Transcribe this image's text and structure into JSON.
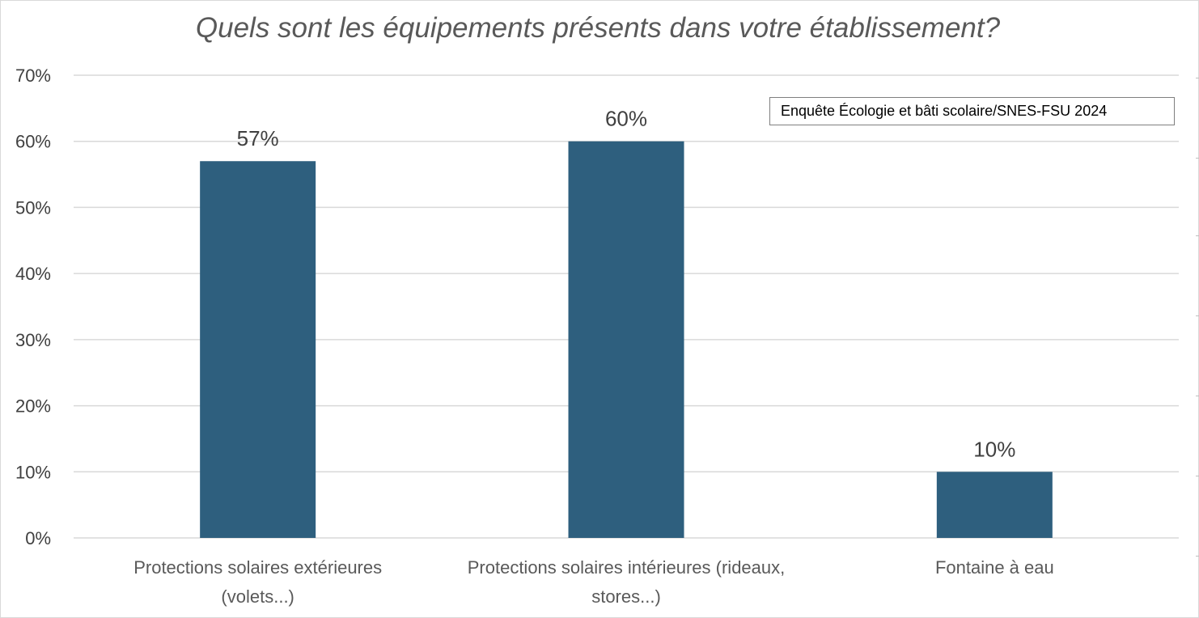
{
  "chart_data": {
    "type": "bar",
    "title": "Quels sont les équipements présents dans votre établissement?",
    "annotation": "Enquête Écologie et bâti scolaire/SNES-FSU 2024",
    "categories": [
      [
        "Protections solaires  extérieures",
        "(volets...)"
      ],
      [
        "Protections solaires intérieures (rideaux,",
        "stores...)"
      ],
      [
        "Fontaine à eau"
      ]
    ],
    "values": [
      57,
      60,
      10
    ],
    "data_labels": [
      "57%",
      "60%",
      "10%"
    ],
    "ylim": [
      0,
      70
    ],
    "yticks": [
      0,
      10,
      20,
      30,
      40,
      50,
      60,
      70
    ],
    "ytick_labels": [
      "0%",
      "10%",
      "20%",
      "30%",
      "40%",
      "50%",
      "60%",
      "70%"
    ],
    "grid": true,
    "legend": "none",
    "bar_color": "#2e5f7e",
    "grid_color": "#d9d9d9",
    "text_color": "#404040"
  }
}
